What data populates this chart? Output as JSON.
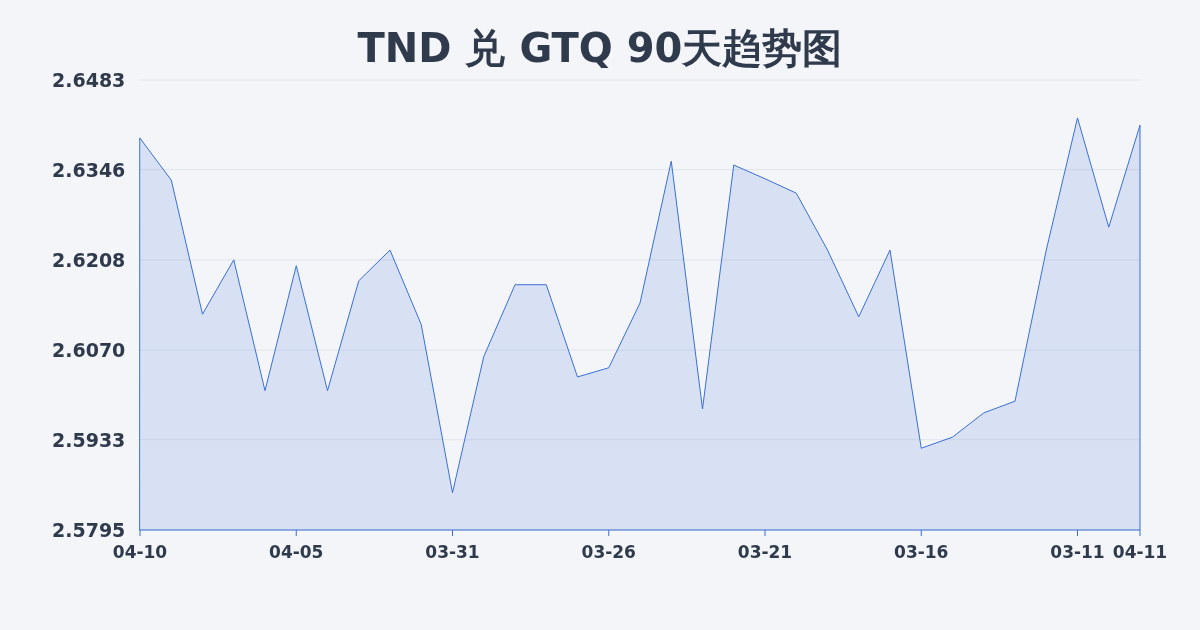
{
  "chart_data": {
    "type": "area",
    "title": "TND 兑 GTQ 90天趋势图",
    "categories": [
      "04-10",
      null,
      null,
      null,
      null,
      "04-05",
      null,
      null,
      null,
      null,
      "03-31",
      null,
      null,
      null,
      null,
      "03-26",
      null,
      null,
      null,
      null,
      "03-21",
      null,
      null,
      null,
      null,
      "03-16",
      null,
      null,
      null,
      null,
      "03-11",
      null,
      "04-11"
    ],
    "values": [
      2.6394,
      2.633,
      2.6125,
      2.6208,
      2.6008,
      2.6199,
      2.6008,
      2.6176,
      2.6223,
      2.6109,
      2.5852,
      2.606,
      2.617,
      2.617,
      2.6029,
      2.6043,
      2.6142,
      2.6359,
      2.598,
      2.6353,
      2.6332,
      2.631,
      2.6223,
      2.6121,
      2.6223,
      2.592,
      2.5937,
      2.5974,
      2.5992,
      2.6223,
      2.6425,
      2.6258,
      2.6414
    ],
    "color": "#3b6fd6",
    "ylim": [
      2.5795,
      2.6483
    ],
    "yticks": [
      2.6483,
      2.6346,
      2.6208,
      {
        "value": 2.607,
        "label": "2.6070"
      },
      2.5933,
      2.5795
    ],
    "grid": "y"
  }
}
